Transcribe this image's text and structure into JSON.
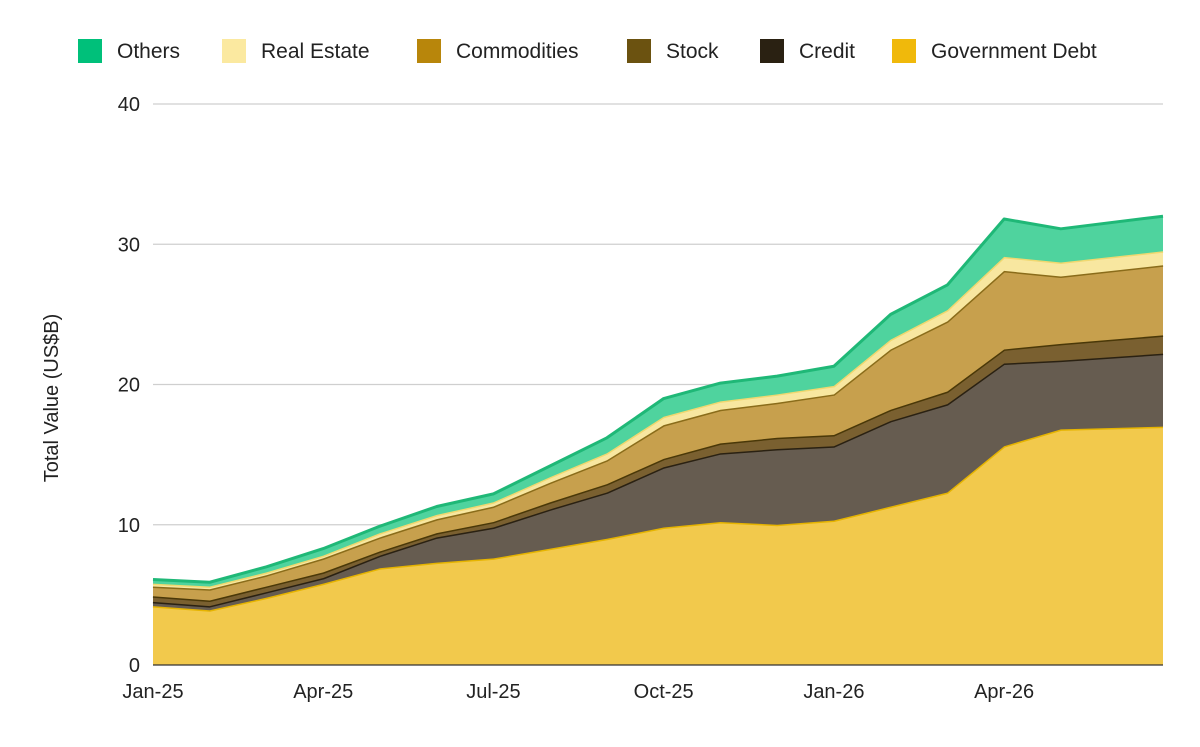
{
  "chart_data": {
    "type": "area",
    "stacked": true,
    "title": "",
    "xlabel": "",
    "ylabel": "Total Value (US$B)",
    "ylim": [
      0,
      40
    ],
    "yticks": [
      0,
      10,
      20,
      30,
      40
    ],
    "ytick_labels": [
      "0",
      "10",
      "20",
      "30",
      "40"
    ],
    "xlim": [
      "2025-01",
      "2026-06"
    ],
    "xticks": [
      "Jan-25",
      "Apr-25",
      "Jul-25",
      "Oct-25",
      "Jan-26",
      "Apr-26"
    ],
    "grid": "horizontal",
    "legend_position": "top",
    "x": [
      "2025-01",
      "2025-02",
      "2025-03",
      "2025-04",
      "2025-05",
      "2025-06",
      "2025-07",
      "2025-08",
      "2025-09",
      "2025-10",
      "2025-11",
      "2025-12",
      "2026-01",
      "2026-02",
      "2026-03",
      "2026-04",
      "2026-05",
      "2026-06"
    ],
    "series": [
      {
        "name": "Government Debt",
        "color": "#f2c94c",
        "line_color": "#e6b400",
        "values": [
          4.2,
          3.9,
          4.8,
          5.8,
          6.9,
          7.3,
          7.6,
          8.3,
          9.0,
          9.8,
          10.2,
          10.0,
          10.3,
          11.3,
          12.3,
          15.6,
          16.8,
          17.0
        ]
      },
      {
        "name": "Credit",
        "color": "#665c50",
        "line_color": "#2a2112",
        "values": [
          0.3,
          0.3,
          0.4,
          0.4,
          0.9,
          1.8,
          2.2,
          2.8,
          3.3,
          4.3,
          4.9,
          5.4,
          5.3,
          6.1,
          6.3,
          5.9,
          4.9,
          5.2
        ]
      },
      {
        "name": "Stock",
        "color": "#7a6030",
        "line_color": "#4a3808",
        "values": [
          0.4,
          0.4,
          0.4,
          0.4,
          0.3,
          0.3,
          0.4,
          0.5,
          0.6,
          0.6,
          0.7,
          0.8,
          0.8,
          0.8,
          0.9,
          1.0,
          1.2,
          1.3
        ]
      },
      {
        "name": "Commodities",
        "color": "#c7a04d",
        "line_color": "#8a6c1a",
        "values": [
          0.7,
          0.8,
          0.8,
          1.0,
          1.0,
          1.0,
          1.1,
          1.4,
          1.7,
          2.4,
          2.4,
          2.5,
          2.9,
          4.3,
          5.0,
          5.6,
          4.8,
          5.0
        ]
      },
      {
        "name": "Real Estate",
        "color": "#f8e7a0",
        "line_color": "#f0d870",
        "values": [
          0.2,
          0.2,
          0.2,
          0.2,
          0.3,
          0.3,
          0.3,
          0.4,
          0.5,
          0.6,
          0.6,
          0.6,
          0.6,
          0.7,
          0.8,
          1.0,
          1.0,
          1.0
        ]
      },
      {
        "name": "Others",
        "color": "#4fd39e",
        "line_color": "#1fb877",
        "values": [
          0.3,
          0.3,
          0.4,
          0.5,
          0.5,
          0.6,
          0.6,
          0.8,
          1.1,
          1.3,
          1.3,
          1.3,
          1.4,
          1.8,
          1.8,
          2.7,
          2.4,
          2.5
        ]
      }
    ],
    "legend": [
      {
        "name": "Others",
        "color": "#00c07a"
      },
      {
        "name": "Real Estate",
        "color": "#fbe9a0"
      },
      {
        "name": "Commodities",
        "color": "#b8860b"
      },
      {
        "name": "Stock",
        "color": "#6b5210"
      },
      {
        "name": "Credit",
        "color": "#2a2112"
      },
      {
        "name": "Government Debt",
        "color": "#f0b90b"
      }
    ]
  }
}
